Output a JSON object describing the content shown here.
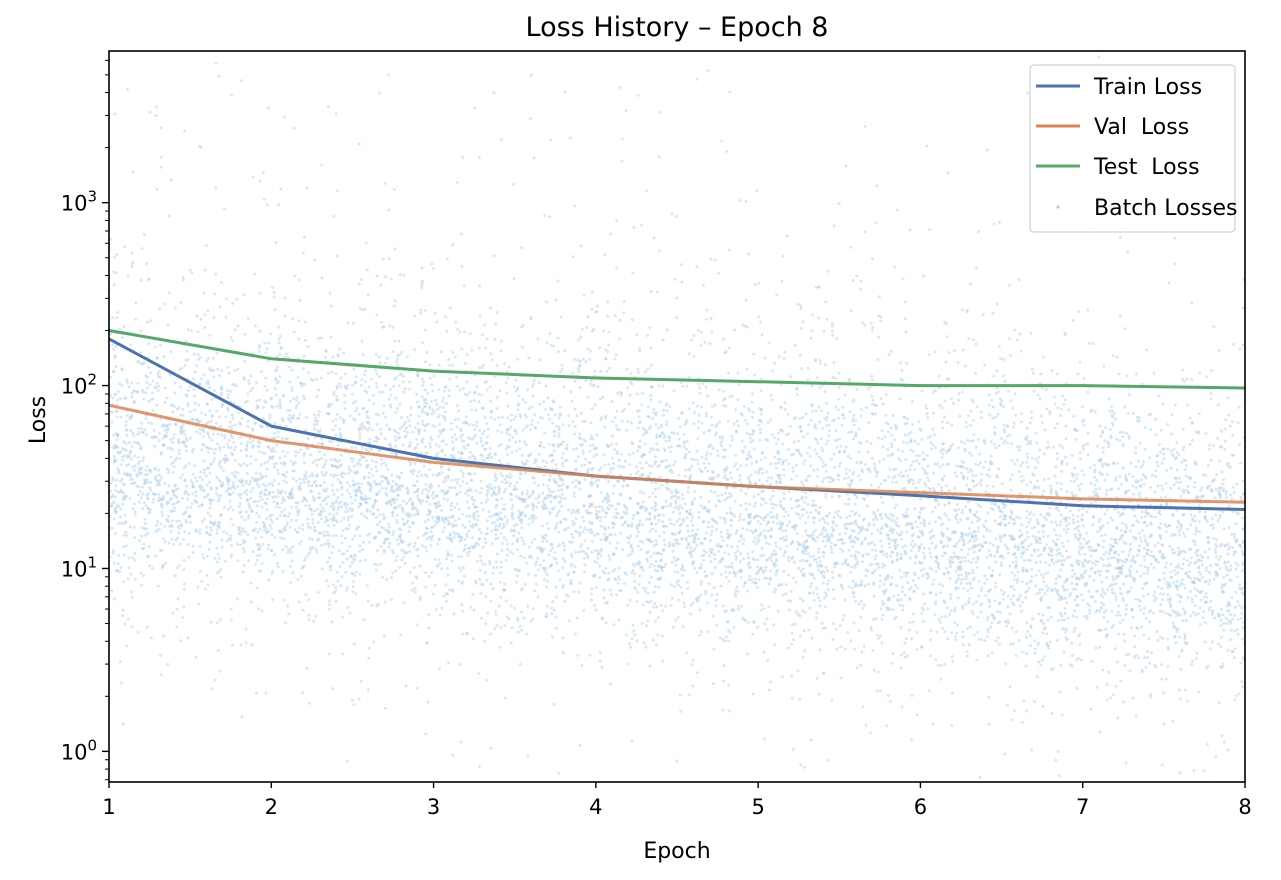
{
  "chart_data": {
    "type": "line",
    "title": "Loss History – Epoch 8",
    "xlabel": "Epoch",
    "ylabel": "Loss",
    "yscale": "log",
    "x": [
      1,
      2,
      3,
      4,
      5,
      6,
      7,
      8
    ],
    "xlim": [
      1,
      8
    ],
    "ylim": [
      0.68,
      6750
    ],
    "xticks": [
      "1",
      "2",
      "3",
      "4",
      "5",
      "6",
      "7",
      "8"
    ],
    "yticks": [
      {
        "base": "10",
        "exp": "0",
        "value": 1
      },
      {
        "base": "10",
        "exp": "1",
        "value": 10
      },
      {
        "base": "10",
        "exp": "2",
        "value": 100
      },
      {
        "base": "10",
        "exp": "3",
        "value": 1000
      }
    ],
    "grid": false,
    "legend_position": "upper right",
    "series": [
      {
        "name": "Train Loss",
        "color": "#4c72b0",
        "values": [
          180,
          60,
          40,
          32,
          28,
          25,
          22,
          21
        ]
      },
      {
        "name": "Val  Loss",
        "color": "#dd8452",
        "values": [
          78,
          50,
          38,
          32,
          28,
          26,
          24,
          23
        ]
      },
      {
        "name": "Test  Loss",
        "color": "#55a868",
        "values": [
          200,
          140,
          120,
          110,
          105,
          100,
          100,
          97
        ]
      }
    ],
    "scatter": {
      "name": "Batch Losses",
      "color": "#a6cbe8",
      "count": 9000,
      "center_start": 40,
      "center_end": 12,
      "log_spread": 0.33
    }
  }
}
